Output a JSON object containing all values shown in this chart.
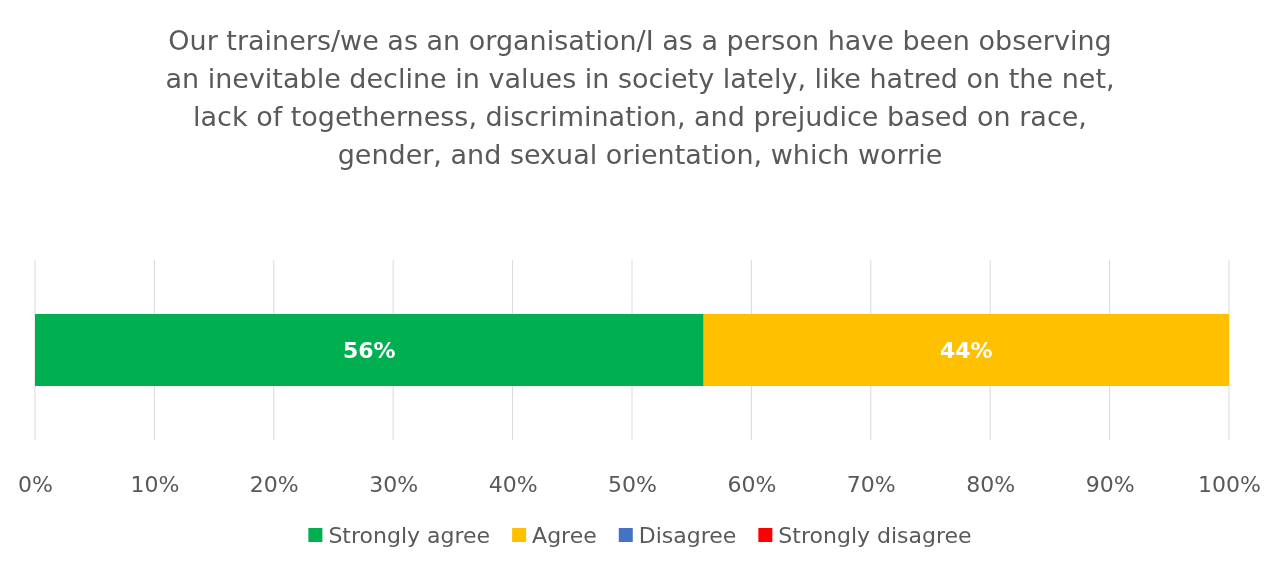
{
  "chart_data": {
    "type": "bar",
    "orientation": "horizontal",
    "stacked": true,
    "title": "Our trainers/we as an organisation/I as a person have been observing an inevitable decline in values in society lately, like hatred on the net, lack of togetherness, discrimination, and prejudice based on race, gender, and sexual orientation, which worrie",
    "categories": [
      null
    ],
    "series": [
      {
        "name": "Strongly agree",
        "color": "#00b050",
        "values": [
          56
        ],
        "value_labels": [
          "56%"
        ]
      },
      {
        "name": "Agree",
        "color": "#ffc000",
        "values": [
          44
        ],
        "value_labels": [
          "44%"
        ]
      },
      {
        "name": "Disagree",
        "color": "#4472c4",
        "values": [
          0
        ],
        "value_labels": [
          null
        ]
      },
      {
        "name": "Strongly disagree",
        "color": "#ff0000",
        "values": [
          0
        ],
        "value_labels": [
          null
        ]
      }
    ],
    "xlim": [
      0,
      100
    ],
    "xticks": [
      {
        "value": 0,
        "label": "0%"
      },
      {
        "value": 10,
        "label": "10%"
      },
      {
        "value": 20,
        "label": "20%"
      },
      {
        "value": 30,
        "label": "30%"
      },
      {
        "value": 40,
        "label": "40%"
      },
      {
        "value": 50,
        "label": "50%"
      },
      {
        "value": 60,
        "label": "60%"
      },
      {
        "value": 70,
        "label": "70%"
      },
      {
        "value": 80,
        "label": "80%"
      },
      {
        "value": 90,
        "label": "90%"
      },
      {
        "value": 100,
        "label": "100%"
      }
    ],
    "grid": "x",
    "legend": "bottom"
  }
}
